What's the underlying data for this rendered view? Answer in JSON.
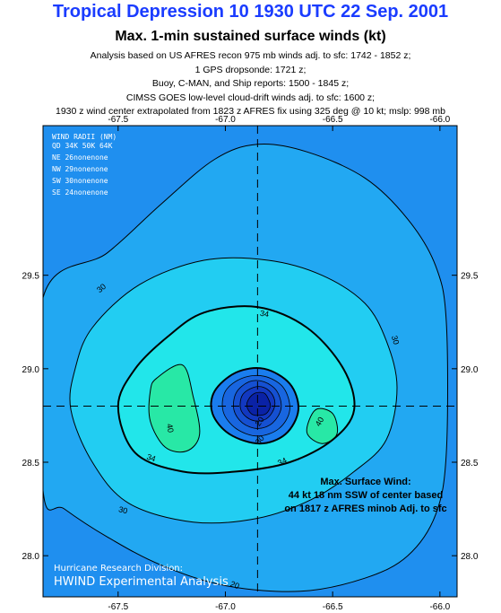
{
  "header": {
    "title": "Tropical Depression 10 1930 UTC 22 Sep. 2001",
    "subtitle": "Max. 1-min sustained surface winds (kt)",
    "notes": [
      "Analysis based on US AFRES recon 975 mb winds adj. to sfc: 1742 - 1852 z;",
      "1 GPS dropsonde: 1721 z;",
      "Buoy, C-MAN, and Ship reports: 1500 - 1845 z;",
      "CIMSS GOES low-level cloud-drift winds adj. to sfc: 1600 z;",
      "1930 z wind center extrapolated from 1823 z AFRES fix using 325 deg @ 10 kt; mslp: 998 mb"
    ]
  },
  "wind_radii": {
    "title": "WIND RADII (NM)",
    "header": "QD 34K 50K 64K",
    "rows": [
      "NE  26nonenone",
      "NW  29nonenone",
      "SW  30nonenone",
      "SE  24nonenone"
    ]
  },
  "max_wind": {
    "lines": [
      "Max. Surface Wind:",
      "44 kt 18 nm SSW of center based",
      "on  1817 z AFRES minob Adj. to sfc"
    ]
  },
  "credit": {
    "line1": "Hurricane Research Division:",
    "line2": "HWIND Experimental Analysis"
  },
  "colors": {
    "band_20": "#1f8fef",
    "band_25": "#22a8f2",
    "band_30": "#22cdf2",
    "band_34": "#22e6ea",
    "band_40": "#28e8a6",
    "inner_1": "#1a7dee",
    "inner_2": "#1866e0",
    "inner_3": "#1550d2",
    "inner_4": "#1238c0",
    "inner_5": "#0a22a6"
  },
  "chart_data": {
    "type": "heatmap",
    "title": "Max. 1-min sustained surface winds (kt)",
    "units": "kt",
    "xlim": [
      -67.85,
      -65.92
    ],
    "ylim": [
      27.78,
      30.3
    ],
    "x_ticks": [
      -67.5,
      -67.0,
      -66.5,
      -66.0
    ],
    "x_tick_labels": [
      "-67.5",
      "-67.0",
      "-66.5",
      "-66.0"
    ],
    "y_ticks": [
      28.0,
      28.5,
      29.0,
      29.5
    ],
    "y_tick_labels": [
      "28.0",
      "28.5",
      "29.0",
      "29.5"
    ],
    "center": {
      "lon": -66.85,
      "lat": 28.8
    },
    "contour_labels": [
      "30",
      "30",
      "30",
      "34",
      "34",
      "34",
      "40",
      "40",
      "20",
      "20",
      "30"
    ],
    "contours": [
      {
        "level": 20,
        "points": [
          [
            -67.85,
            29.38
          ],
          [
            -67.55,
            29.62
          ],
          [
            -67.3,
            29.88
          ],
          [
            -67.05,
            30.12
          ],
          [
            -66.85,
            30.2
          ],
          [
            -66.62,
            30.16
          ],
          [
            -66.35,
            30.02
          ],
          [
            -66.15,
            29.8
          ],
          [
            -66.02,
            29.55
          ],
          [
            -65.97,
            29.25
          ],
          [
            -65.97,
            28.55
          ],
          [
            -66.02,
            28.22
          ],
          [
            -66.15,
            28.0
          ],
          [
            -66.35,
            27.88
          ],
          [
            -66.65,
            27.81
          ],
          [
            -67.0,
            27.84
          ],
          [
            -67.3,
            27.95
          ],
          [
            -67.55,
            28.1
          ],
          [
            -67.75,
            28.25
          ],
          [
            -67.85,
            28.35
          ]
        ]
      },
      {
        "level": 30,
        "points": [
          [
            -67.62,
            29.22
          ],
          [
            -67.4,
            29.45
          ],
          [
            -67.1,
            29.58
          ],
          [
            -66.8,
            29.58
          ],
          [
            -66.55,
            29.5
          ],
          [
            -66.35,
            29.35
          ],
          [
            -66.25,
            29.15
          ],
          [
            -66.2,
            28.9
          ],
          [
            -66.25,
            28.62
          ],
          [
            -66.4,
            28.45
          ],
          [
            -66.6,
            28.3
          ],
          [
            -66.85,
            28.2
          ],
          [
            -67.15,
            28.18
          ],
          [
            -67.45,
            28.28
          ],
          [
            -67.62,
            28.5
          ],
          [
            -67.72,
            28.78
          ],
          [
            -67.7,
            29.0
          ]
        ]
      },
      {
        "level": 34,
        "points": [
          [
            -67.27,
            29.17
          ],
          [
            -67.1,
            29.3
          ],
          [
            -66.85,
            29.33
          ],
          [
            -66.62,
            29.22
          ],
          [
            -66.45,
            29.0
          ],
          [
            -66.4,
            28.78
          ],
          [
            -66.5,
            28.62
          ],
          [
            -66.7,
            28.5
          ],
          [
            -66.95,
            28.45
          ],
          [
            -67.2,
            28.45
          ],
          [
            -67.42,
            28.55
          ],
          [
            -67.5,
            28.8
          ],
          [
            -67.42,
            29.0
          ]
        ]
      },
      {
        "level": 40,
        "points": [
          [
            -67.32,
            28.95
          ],
          [
            -67.2,
            29.02
          ],
          [
            -67.15,
            28.85
          ],
          [
            -67.12,
            28.65
          ],
          [
            -67.18,
            28.56
          ],
          [
            -67.28,
            28.58
          ],
          [
            -67.35,
            28.72
          ],
          [
            -67.35,
            28.88
          ]
        ]
      },
      {
        "level": 40,
        "points": [
          [
            -66.58,
            28.78
          ],
          [
            -66.5,
            28.76
          ],
          [
            -66.48,
            28.65
          ],
          [
            -66.55,
            28.6
          ],
          [
            -66.62,
            28.66
          ]
        ]
      }
    ],
    "core_contours": [
      {
        "level": 34,
        "points": [
          [
            -67.05,
            28.88
          ],
          [
            -66.95,
            28.98
          ],
          [
            -66.82,
            29.0
          ],
          [
            -66.7,
            28.92
          ],
          [
            -66.66,
            28.78
          ],
          [
            -66.72,
            28.65
          ],
          [
            -66.84,
            28.6
          ],
          [
            -66.98,
            28.65
          ],
          [
            -67.06,
            28.76
          ]
        ]
      },
      {
        "level": 30,
        "points": [
          [
            -67.0,
            28.88
          ],
          [
            -66.92,
            28.95
          ],
          [
            -66.82,
            28.96
          ],
          [
            -66.73,
            28.9
          ],
          [
            -66.7,
            28.78
          ],
          [
            -66.75,
            28.68
          ],
          [
            -66.85,
            28.64
          ],
          [
            -66.95,
            28.68
          ],
          [
            -67.01,
            28.77
          ]
        ]
      },
      {
        "level": 25,
        "points": [
          [
            -66.95,
            28.87
          ],
          [
            -66.89,
            28.93
          ],
          [
            -66.82,
            28.93
          ],
          [
            -66.76,
            28.88
          ],
          [
            -66.74,
            28.79
          ],
          [
            -66.78,
            28.71
          ],
          [
            -66.85,
            28.68
          ],
          [
            -66.92,
            28.71
          ],
          [
            -66.96,
            28.78
          ]
        ]
      },
      {
        "level": 20,
        "points": [
          [
            -66.92,
            28.86
          ],
          [
            -66.87,
            28.9
          ],
          [
            -66.82,
            28.9
          ],
          [
            -66.78,
            28.86
          ],
          [
            -66.77,
            28.8
          ],
          [
            -66.8,
            28.74
          ],
          [
            -66.85,
            28.72
          ],
          [
            -66.9,
            28.74
          ],
          [
            -66.93,
            28.79
          ]
        ]
      },
      {
        "level": 15,
        "points": [
          [
            -66.89,
            28.84
          ],
          [
            -66.86,
            28.87
          ],
          [
            -66.82,
            28.87
          ],
          [
            -66.8,
            28.84
          ],
          [
            -66.79,
            28.8
          ],
          [
            -66.81,
            28.76
          ],
          [
            -66.85,
            28.75
          ],
          [
            -66.88,
            28.76
          ],
          [
            -66.9,
            28.8
          ]
        ]
      }
    ]
  }
}
